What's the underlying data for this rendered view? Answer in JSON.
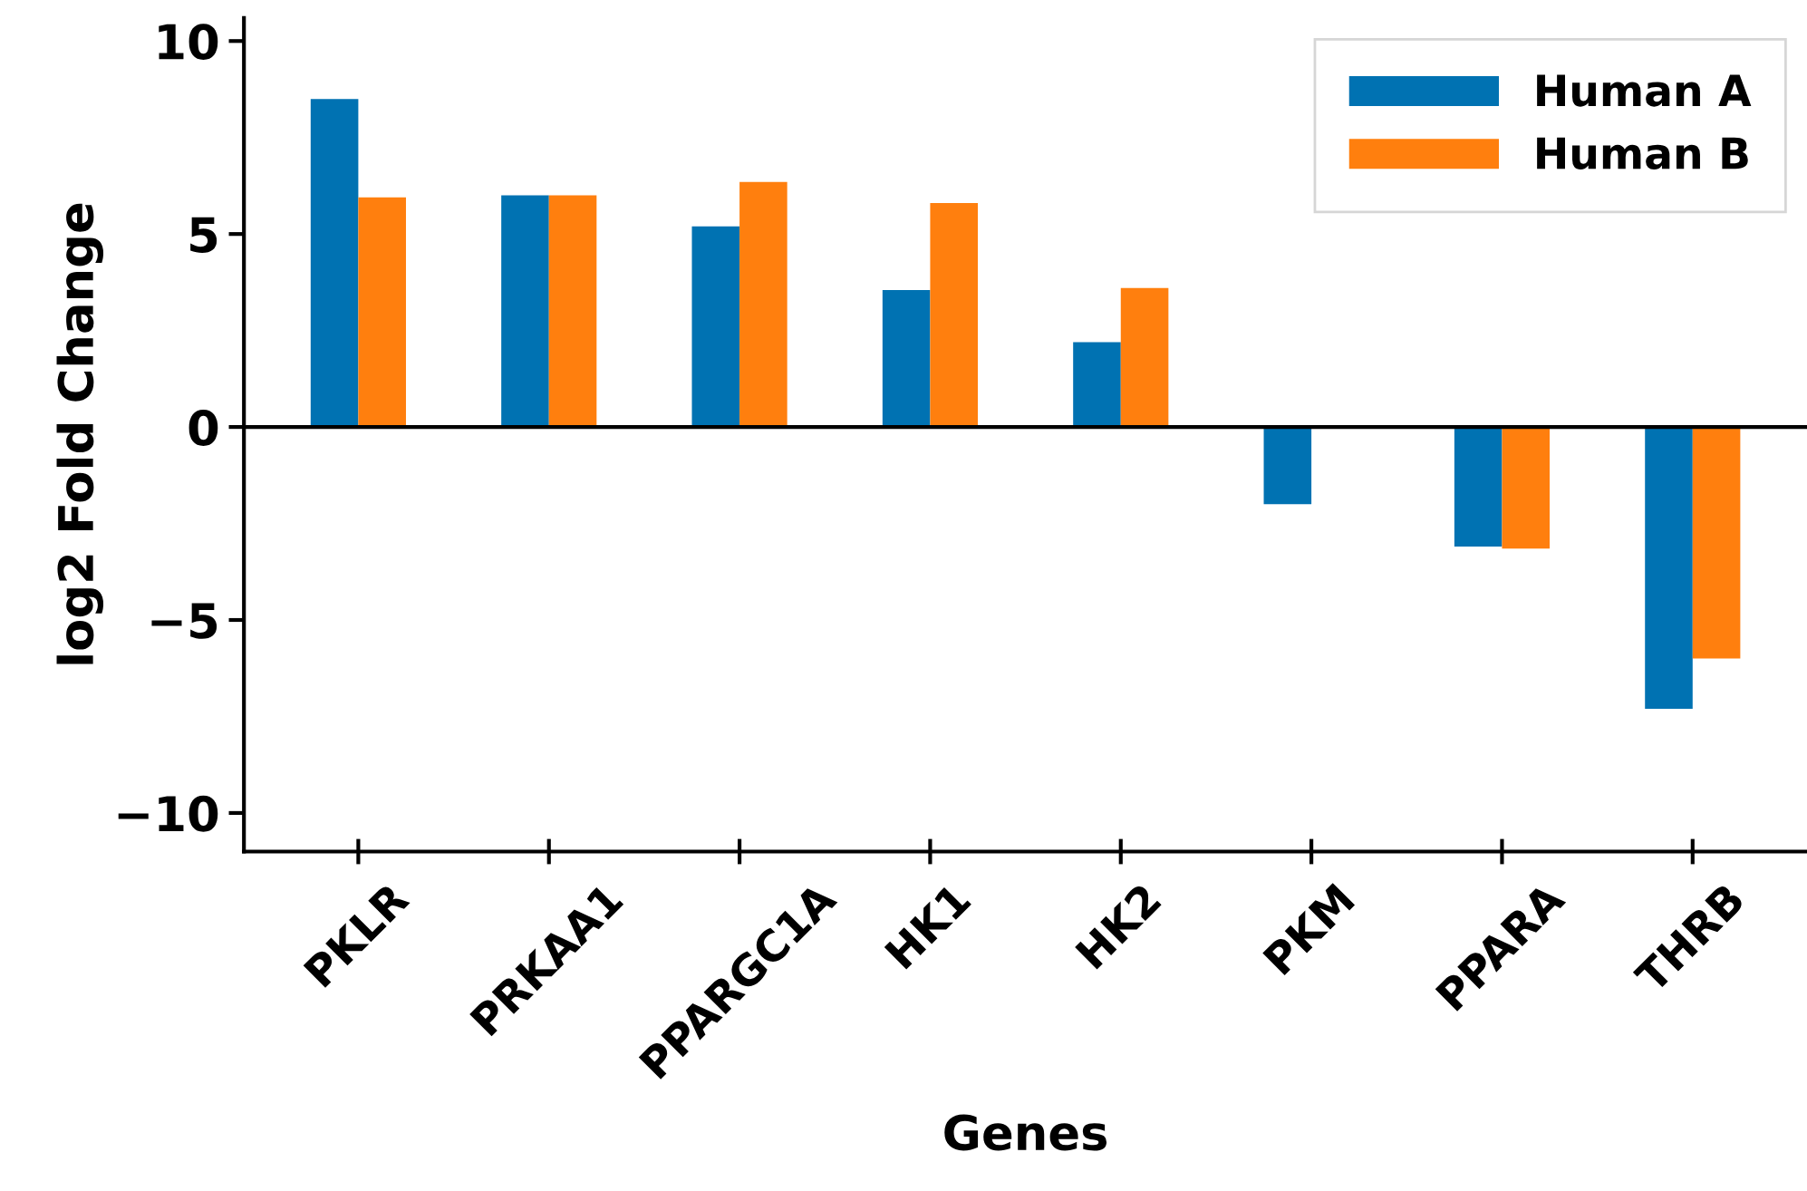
{
  "chart_data": {
    "type": "bar",
    "xlabel": "Genes",
    "ylabel": "log2 Fold Change",
    "categories": [
      "PKLR",
      "PRKAA1",
      "PPARGC1A",
      "HK1",
      "HK2",
      "PKM",
      "PPARA",
      "THRB"
    ],
    "series": [
      {
        "name": "Human A",
        "color": "#0072b2",
        "values": [
          8.5,
          6.0,
          5.2,
          3.55,
          2.2,
          -2.0,
          -3.1,
          -7.3
        ]
      },
      {
        "name": "Human B",
        "color": "#ff7f0e",
        "values": [
          5.95,
          6.0,
          6.35,
          5.8,
          3.6,
          null,
          -3.15,
          -6.0
        ]
      }
    ],
    "ylim": [
      -11,
      10.6
    ],
    "yticks": [
      {
        "value": -10,
        "label": "−10"
      },
      {
        "value": -5,
        "label": "−5"
      },
      0,
      5,
      10
    ],
    "ref_lines": [
      {
        "axis": "y",
        "value": 0,
        "color": "#000000"
      }
    ],
    "grid": false,
    "legend": "top right"
  }
}
